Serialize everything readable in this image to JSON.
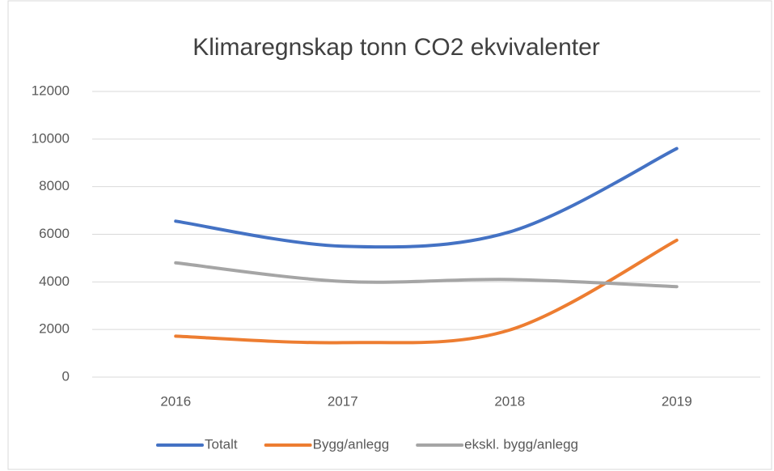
{
  "chart_data": {
    "type": "line",
    "title": "Klimaregnskap tonn CO2 ekvivalenter",
    "categories": [
      "2016",
      "2017",
      "2018",
      "2019"
    ],
    "series": [
      {
        "name": "Totalt",
        "color": "#4472c4",
        "values": [
          6550,
          5500,
          6100,
          9600
        ]
      },
      {
        "name": "Bygg/anlegg",
        "color": "#ed7d31",
        "values": [
          1720,
          1450,
          1980,
          5750
        ]
      },
      {
        "name": "ekskl. bygg/anlegg",
        "color": "#a5a5a5",
        "values": [
          4800,
          4020,
          4100,
          3800
        ]
      }
    ],
    "ylim": [
      0,
      12000
    ],
    "yticks": [
      0,
      2000,
      4000,
      6000,
      8000,
      10000,
      12000
    ],
    "grid": true,
    "legend": "bottom",
    "smooth": true
  }
}
